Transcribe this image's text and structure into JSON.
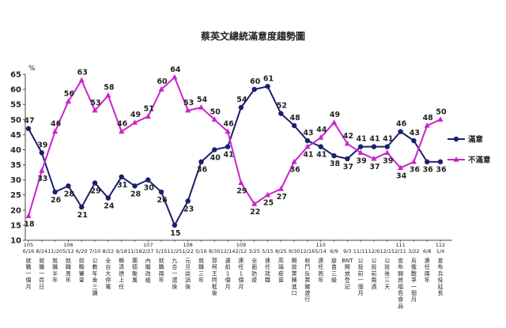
{
  "chart_data": {
    "type": "line",
    "title": "蔡英文總統滿意度趨勢圖",
    "unit": "%",
    "ylim": [
      10,
      65
    ],
    "yticks": [
      10,
      15,
      20,
      25,
      30,
      35,
      40,
      45,
      50,
      55,
      60,
      65
    ],
    "grid": false,
    "legend_position": "right",
    "x": [
      {
        "date": "6/16",
        "year": "105",
        "event": "就職一個月"
      },
      {
        "date": "8/24",
        "year": "",
        "event": "就職一百日"
      },
      {
        "date": "11/20",
        "year": "",
        "event": "就職半年"
      },
      {
        "date": "5/12",
        "year": "106",
        "event": "就職周年"
      },
      {
        "date": "6/20",
        "year": "",
        "event": "前瞻審查"
      },
      {
        "date": "7/10",
        "year": "",
        "event": "公教年金三讀"
      },
      {
        "date": "8/22",
        "year": "",
        "event": "全台大停電"
      },
      {
        "date": "9/18",
        "year": "",
        "event": "賴清德上任"
      },
      {
        "date": "11/18",
        "year": "",
        "event": "蘭德颱風"
      },
      {
        "date": "2/27",
        "year": "107",
        "event": "內閣改組"
      },
      {
        "date": "5/15",
        "year": "",
        "event": "就職兩年"
      },
      {
        "date": "11/25",
        "year": "",
        "event": "九合一選後"
      },
      {
        "date": "1/22",
        "year": "108",
        "event": "元旦談話後"
      },
      {
        "date": "5/16",
        "year": "",
        "event": "就職三年"
      },
      {
        "date": "8/30",
        "year": "",
        "event": "郭柯王同框後"
      },
      {
        "date": "12/14",
        "year": "",
        "event": "選前1個月"
      },
      {
        "date": "2/12",
        "year": "109",
        "event": "連任1個月"
      },
      {
        "date": "3/25",
        "year": "",
        "event": "全面防疫"
      },
      {
        "date": "5/15",
        "year": "",
        "event": "連任就職"
      },
      {
        "date": "8/25",
        "year": "",
        "event": "高端疫苗"
      },
      {
        "date": "9/30",
        "year": "",
        "event": "開放萊豬進口"
      },
      {
        "date": "12/16",
        "year": "",
        "event": "秋鬥反萊豬遊行"
      },
      {
        "date": "5/14",
        "year": "110",
        "event": "連任周年"
      },
      {
        "date": "6/9",
        "year": "",
        "event": "疫苗三級"
      },
      {
        "date": "9/3",
        "year": "",
        "event": "BNT開放登記"
      },
      {
        "date": "11/11",
        "year": "",
        "event": "公投前一個月"
      },
      {
        "date": "12/6",
        "year": "",
        "event": "公投前兩週"
      },
      {
        "date": "12/15",
        "year": "",
        "event": "公投後三天"
      },
      {
        "date": "2/11",
        "year": "111",
        "event": "宣布開放福島食品"
      },
      {
        "date": "3/22",
        "year": "",
        "event": "烏俄戰爭一個月"
      },
      {
        "date": "6/8",
        "year": "",
        "event": "連任兩年"
      },
      {
        "date": "1/4",
        "year": "112",
        "event": "宣布兵役延長"
      }
    ],
    "series": [
      {
        "name": "滿意",
        "color": "#1a1f6e",
        "values": [
          47,
          39,
          26,
          28,
          21,
          29,
          24,
          31,
          28,
          30,
          26,
          15,
          23,
          36,
          40,
          41,
          54,
          60,
          61,
          52,
          48,
          43,
          41,
          38,
          37,
          41,
          41,
          41,
          46,
          43,
          36,
          36
        ]
      },
      {
        "name": "不滿意",
        "color": "#cc22cc",
        "values": [
          18,
          33,
          46,
          56,
          63,
          53,
          58,
          46,
          49,
          51,
          60,
          64,
          53,
          54,
          50,
          46,
          29,
          22,
          25,
          27,
          36,
          41,
          44,
          49,
          42,
          39,
          37,
          39,
          34,
          36,
          48,
          50
        ]
      }
    ]
  }
}
